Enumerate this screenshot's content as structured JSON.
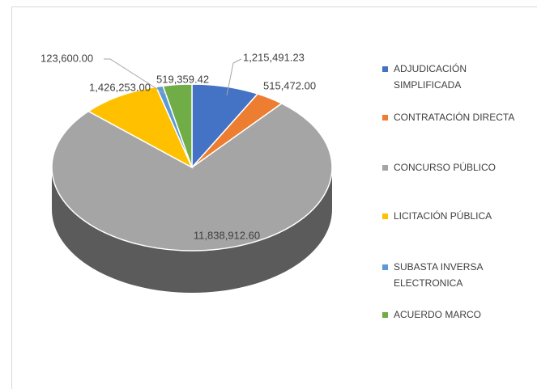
{
  "chart_data": {
    "type": "pie3d",
    "categories": [
      "ADJUDICACIÓN SIMPLIFICADA",
      "CONTRATACIÓN DIRECTA",
      "CONCURSO PÚBLICO",
      "LICITACIÓN PÚBLICA",
      "SUBASTA INVERSA ELECTRONICA",
      "ACUERDO MARCO"
    ],
    "values": [
      1215491.23,
      515472.0,
      11838912.6,
      1426253.0,
      123600.0,
      519359.42
    ],
    "value_labels": [
      "1,215,491.23",
      "515,472.00",
      "11,838,912.60",
      "1,426,253.00",
      "123,600.00",
      "519,359.42"
    ],
    "colors": [
      "#4472c4",
      "#ed7d31",
      "#a5a5a5",
      "#ffc000",
      "#5b9bd5",
      "#70ad47"
    ],
    "legend": "right"
  }
}
